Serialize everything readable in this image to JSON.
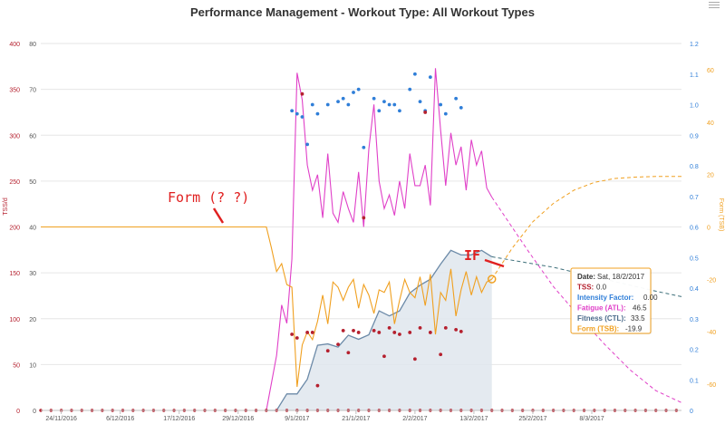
{
  "chart_data": {
    "type": "line",
    "title": "Performance Management - Workout Type: All Workout Types",
    "x_axis": {
      "ticks": [
        "24/11/2016",
        "6/12/2016",
        "17/12/2016",
        "29/12/2016",
        "9/1/2017",
        "21/1/2017",
        "2/2/2017",
        "13/2/2017",
        "25/2/2017",
        "8/3/2017"
      ]
    },
    "y_axis_tss": {
      "label": "TSS/d",
      "ticks": [
        "0",
        "50",
        "100",
        "150",
        "200",
        "250",
        "300",
        "350",
        "400"
      ],
      "range": [
        0,
        400
      ]
    },
    "y_axis_ctl": {
      "ticks": [
        "0",
        "10",
        "20",
        "30",
        "40",
        "50",
        "60",
        "70",
        "80"
      ],
      "range": [
        0,
        80
      ]
    },
    "y_axis_if": {
      "ticks": [
        "0",
        "0.1",
        "0.2",
        "0.3",
        "0.4",
        "0.5",
        "0.6",
        "0.7",
        "0.8",
        "0.9",
        "1.0",
        "1.1",
        "1.2"
      ],
      "range": [
        0,
        1.2
      ]
    },
    "y_axis_tsb": {
      "label": "Form (TSB)",
      "ticks": [
        "-60",
        "-40",
        "-20",
        "0",
        "20",
        "40",
        "60"
      ],
      "range": [
        -70,
        70
      ]
    },
    "series": [
      {
        "name": "Fitness (CTL)",
        "axis": "ctl",
        "style": "area",
        "days": [
          44,
          46,
          48,
          50,
          52,
          54,
          56,
          58,
          60,
          62,
          64,
          66,
          68,
          70,
          72,
          74,
          76,
          78,
          80,
          82,
          84,
          86,
          88
        ],
        "values": [
          0,
          0,
          3.6,
          3.6,
          6.8,
          14.2,
          14.5,
          13.8,
          16.4,
          15.5,
          16.5,
          21.7,
          20.6,
          21.7,
          25.6,
          27.3,
          28.6,
          31.9,
          34.9,
          33.9,
          33.9,
          34.9,
          33.5
        ],
        "projection": {
          "days": [
            88,
            100,
            110,
            120,
            125
          ],
          "values": [
            33.5,
            31.2,
            28.6,
            26.0,
            24.8
          ]
        }
      },
      {
        "name": "Fatigue (ATL)",
        "axis": "ctl",
        "style": "line",
        "days": [
          44,
          46,
          47,
          48,
          49,
          50,
          51,
          52,
          53,
          54,
          55,
          56,
          57,
          58,
          59,
          60,
          61,
          62,
          63,
          64,
          65,
          66,
          67,
          68,
          69,
          70,
          71,
          72,
          73,
          74,
          75,
          76,
          77,
          78,
          79,
          80,
          81,
          82,
          83,
          84,
          85,
          86,
          87,
          88
        ],
        "values": [
          0,
          12,
          23,
          19,
          33,
          73.6,
          67.7,
          53.5,
          48,
          51.4,
          42,
          56,
          43,
          41,
          47.7,
          44,
          41,
          52,
          40,
          57,
          66.7,
          50,
          44,
          47,
          42.5,
          50,
          44,
          56,
          49,
          49,
          53.5,
          44.7,
          74.6,
          61.1,
          49,
          60.5,
          53.5,
          57.5,
          48,
          59,
          53.5,
          56.6,
          48.5,
          46.5
        ],
        "projection": {
          "days": [
            88,
            95,
            100,
            105,
            110,
            115,
            120,
            125
          ],
          "values": [
            46.5,
            34.9,
            27.0,
            20.5,
            14.4,
            8.8,
            4.3,
            1.7
          ]
        }
      },
      {
        "name": "Form (TSB)",
        "axis": "tsb",
        "style": "line",
        "days": [
          0,
          44,
          45,
          46,
          47,
          48,
          49,
          50,
          51,
          52,
          53,
          54,
          55,
          56,
          57,
          58,
          59,
          60,
          61,
          62,
          63,
          64,
          65,
          66,
          67,
          68,
          69,
          70,
          71,
          72,
          73,
          74,
          75,
          76,
          77,
          78,
          79,
          80,
          81,
          82,
          83,
          84,
          85,
          86,
          87,
          88
        ],
        "values": [
          0,
          0,
          -8,
          -17,
          -14,
          -22,
          -23,
          -61,
          -45,
          -40,
          -43,
          -36,
          -26,
          -37,
          -21,
          -23,
          -28,
          -23,
          -20,
          -31,
          -22,
          -26,
          -33,
          -24,
          -25,
          -21,
          -37,
          -28,
          -20,
          -25,
          -27,
          -19,
          -30,
          -18,
          -41,
          -25,
          -28,
          -16,
          -34,
          -24,
          -17,
          -26,
          -19,
          -25,
          -21,
          -19.9
        ],
        "projection": {
          "days": [
            88,
            92,
            96,
            100,
            104,
            108,
            112,
            116,
            120,
            125
          ],
          "values": [
            -19.9,
            -8,
            2,
            9,
            14,
            17,
            18.5,
            19,
            19.3,
            19.3
          ]
        }
      },
      {
        "name": "Intensity Factor",
        "axis": "if",
        "style": "points",
        "days": [
          49,
          50,
          51,
          52,
          53,
          54,
          56,
          58,
          59,
          60,
          61,
          62,
          63,
          65,
          66,
          67,
          68,
          69,
          70,
          72,
          73,
          74,
          75,
          76,
          78,
          79,
          81,
          82
        ],
        "values": [
          0.98,
          0.97,
          0.96,
          0.87,
          1.0,
          0.97,
          1.0,
          1.01,
          1.02,
          1.0,
          1.04,
          1.05,
          0.86,
          1.02,
          0.98,
          1.01,
          1.0,
          1.0,
          0.98,
          1.05,
          1.1,
          1.01,
          0.98,
          1.09,
          1.0,
          0.97,
          1.02,
          0.99
        ]
      },
      {
        "name": "TSS",
        "axis": "tss",
        "style": "points",
        "zero_days": [
          0,
          2,
          4,
          6,
          8,
          10,
          12,
          14,
          16,
          18,
          20,
          22,
          24,
          26,
          28,
          30,
          32,
          34,
          36,
          38,
          40,
          42,
          44,
          46,
          48,
          50,
          52,
          54,
          56,
          58,
          60,
          62,
          64,
          66,
          68,
          70,
          72,
          74,
          76,
          78,
          80,
          82,
          84,
          86,
          88,
          90,
          92,
          94,
          96,
          98,
          100,
          102,
          104,
          106,
          108,
          110,
          112,
          114,
          116,
          118,
          120,
          122,
          124
        ],
        "days": [
          49,
          50,
          51,
          52,
          53,
          54,
          56,
          58,
          59,
          60,
          61,
          62,
          63,
          65,
          66,
          67,
          68,
          69,
          70,
          72,
          73,
          74,
          75,
          76,
          78,
          79,
          81,
          82
        ],
        "values": [
          83,
          79,
          345,
          85,
          85,
          27,
          65,
          72,
          87,
          63,
          87,
          85,
          210,
          87,
          85,
          59,
          90,
          85,
          83,
          85,
          56,
          90,
          325,
          85,
          61,
          90,
          88,
          86
        ]
      }
    ],
    "annotations": [
      {
        "text": "Form (? ?)"
      },
      {
        "text": "IF"
      }
    ],
    "tooltip": {
      "date_label": "Date:",
      "date_value": "Sat, 18/2/2017",
      "rows": [
        {
          "label": "TSS:",
          "value": "0.0",
          "color": "#b5202e"
        },
        {
          "label": "Intensity Factor:",
          "value": "0.00",
          "color": "#2f7ed8"
        },
        {
          "label": "Fatigue (ATL):",
          "value": "46.5",
          "color": "#e040c8"
        },
        {
          "label": "Fitness (CTL):",
          "value": "33.5",
          "color": "#4a6a8a"
        },
        {
          "label": "Form (TSB):",
          "value": "-19.9",
          "color": "#f0a020"
        }
      ]
    },
    "colors": {
      "ctl": "#6c8aa8",
      "ctl_fill": "#dfe6ed",
      "atl": "#e040c8",
      "tsb": "#f0a020",
      "if": "#2f7ed8",
      "tss": "#b5202e",
      "annot": "#e02020"
    }
  }
}
